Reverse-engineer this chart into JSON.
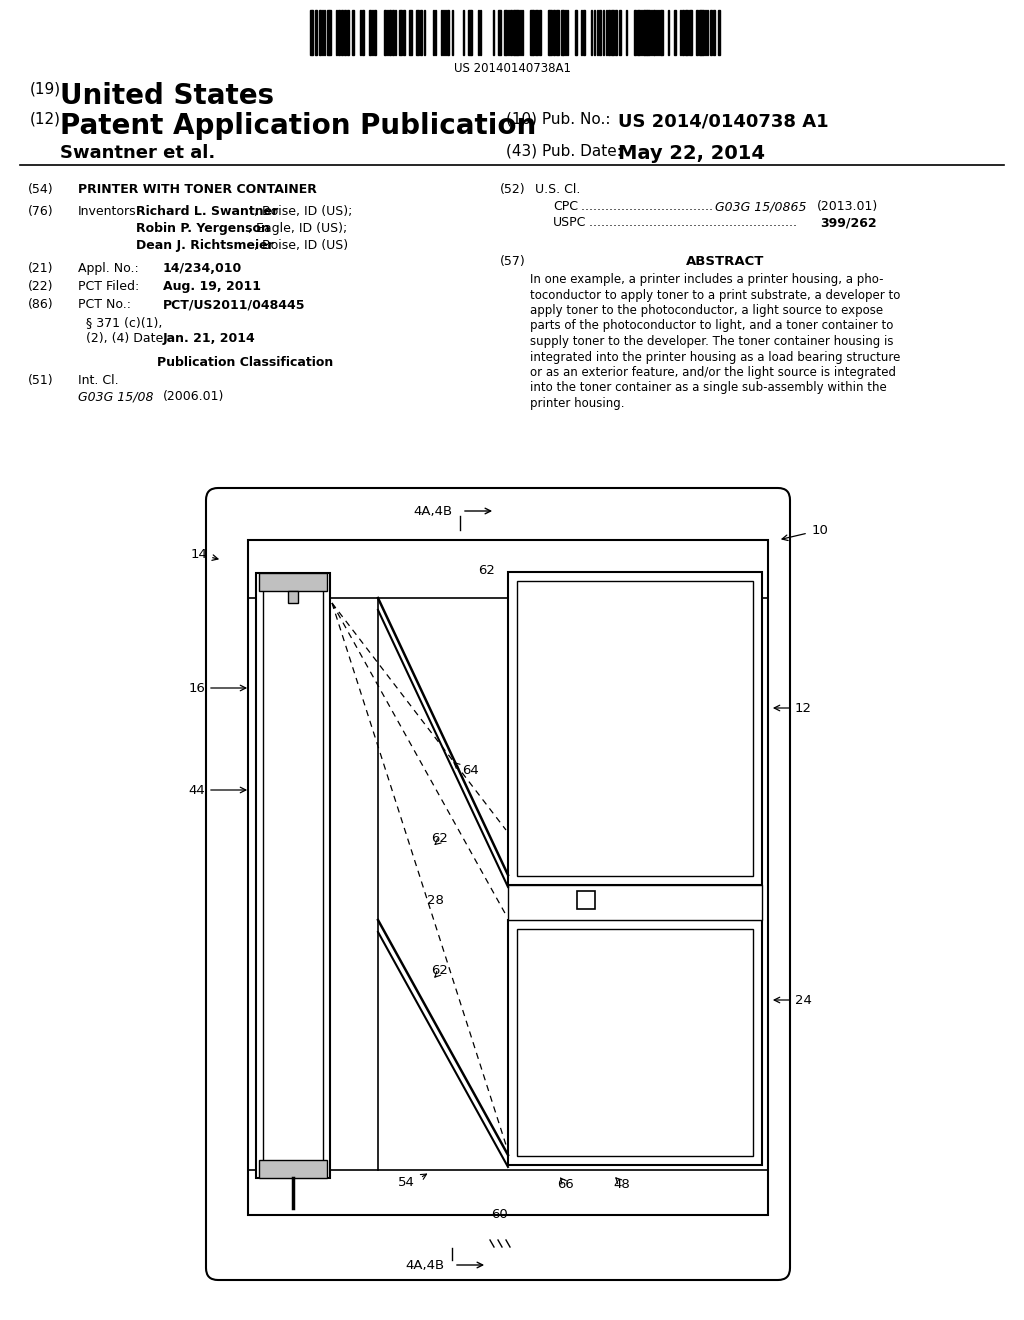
{
  "bg_color": "#ffffff",
  "barcode_text": "US 20140140738A1",
  "header_19": "(19)",
  "header_19_val": "United States",
  "header_12": "(12)",
  "header_12_val": "Patent Application Publication",
  "header_author": "Swantner et al.",
  "header_10_label": "(10) Pub. No.:",
  "header_10_val": "US 2014/0140738 A1",
  "header_43_label": "(43) Pub. Date:",
  "header_43_val": "May 22, 2014",
  "f54_lbl": "(54)",
  "f54_val": "PRINTER WITH TONER CONTAINER",
  "f76_lbl": "(76)",
  "f76_inventors": "Inventors:",
  "f76_n1_bold": "Richard L. Swantner",
  "f76_n1_rest": ", Boise, ID (US);",
  "f76_n2_bold": "Robin P. Yergenson",
  "f76_n2_rest": ", Eagle, ID (US);",
  "f76_n3_bold": "Dean J. Richtsmeier",
  "f76_n3_rest": ", Boise, ID (US)",
  "f21_lbl": "(21)",
  "f21_title": "Appl. No.:",
  "f21_val": "14/234,010",
  "f22_lbl": "(22)",
  "f22_title": "PCT Filed:",
  "f22_val": "Aug. 19, 2011",
  "f86_lbl": "(86)",
  "f86_title": "PCT No.:",
  "f86_val": "PCT/US2011/048445",
  "f86_sub1": "§ 371 (c)(1),",
  "f86_sub2": "(2), (4) Date:",
  "f86_sub2_val": "Jan. 21, 2014",
  "pub_class": "Publication Classification",
  "f51_lbl": "(51)",
  "f51_title": "Int. Cl.",
  "f51_a": "G03G 15/08",
  "f51_b": "(2006.01)",
  "f52_lbl": "(52)",
  "f52_title": "U.S. Cl.",
  "f52_cpc_label": "CPC",
  "f52_cpc_dots": " .................................",
  "f52_cpc_val": "G03G 15/0865",
  "f52_cpc_year": "(2013.01)",
  "f52_uspc_label": "USPC",
  "f52_uspc_dots": " ....................................................",
  "f52_uspc_val": "399/262",
  "f57_lbl": "(57)",
  "f57_title": "ABSTRACT",
  "abstract": "In one example, a printer includes a printer housing, a pho-\ntoconductor to apply toner to a print substrate, a developer to\napply toner to the photoconductor, a light source to expose\nparts of the photoconductor to light, and a toner container to\nsupply toner to the developer. The toner container housing is\nintegrated into the printer housing as a load bearing structure\nor as an exterior feature, and/or the light source is integrated\ninto the toner container as a single sub-assembly within the\nprinter housing."
}
